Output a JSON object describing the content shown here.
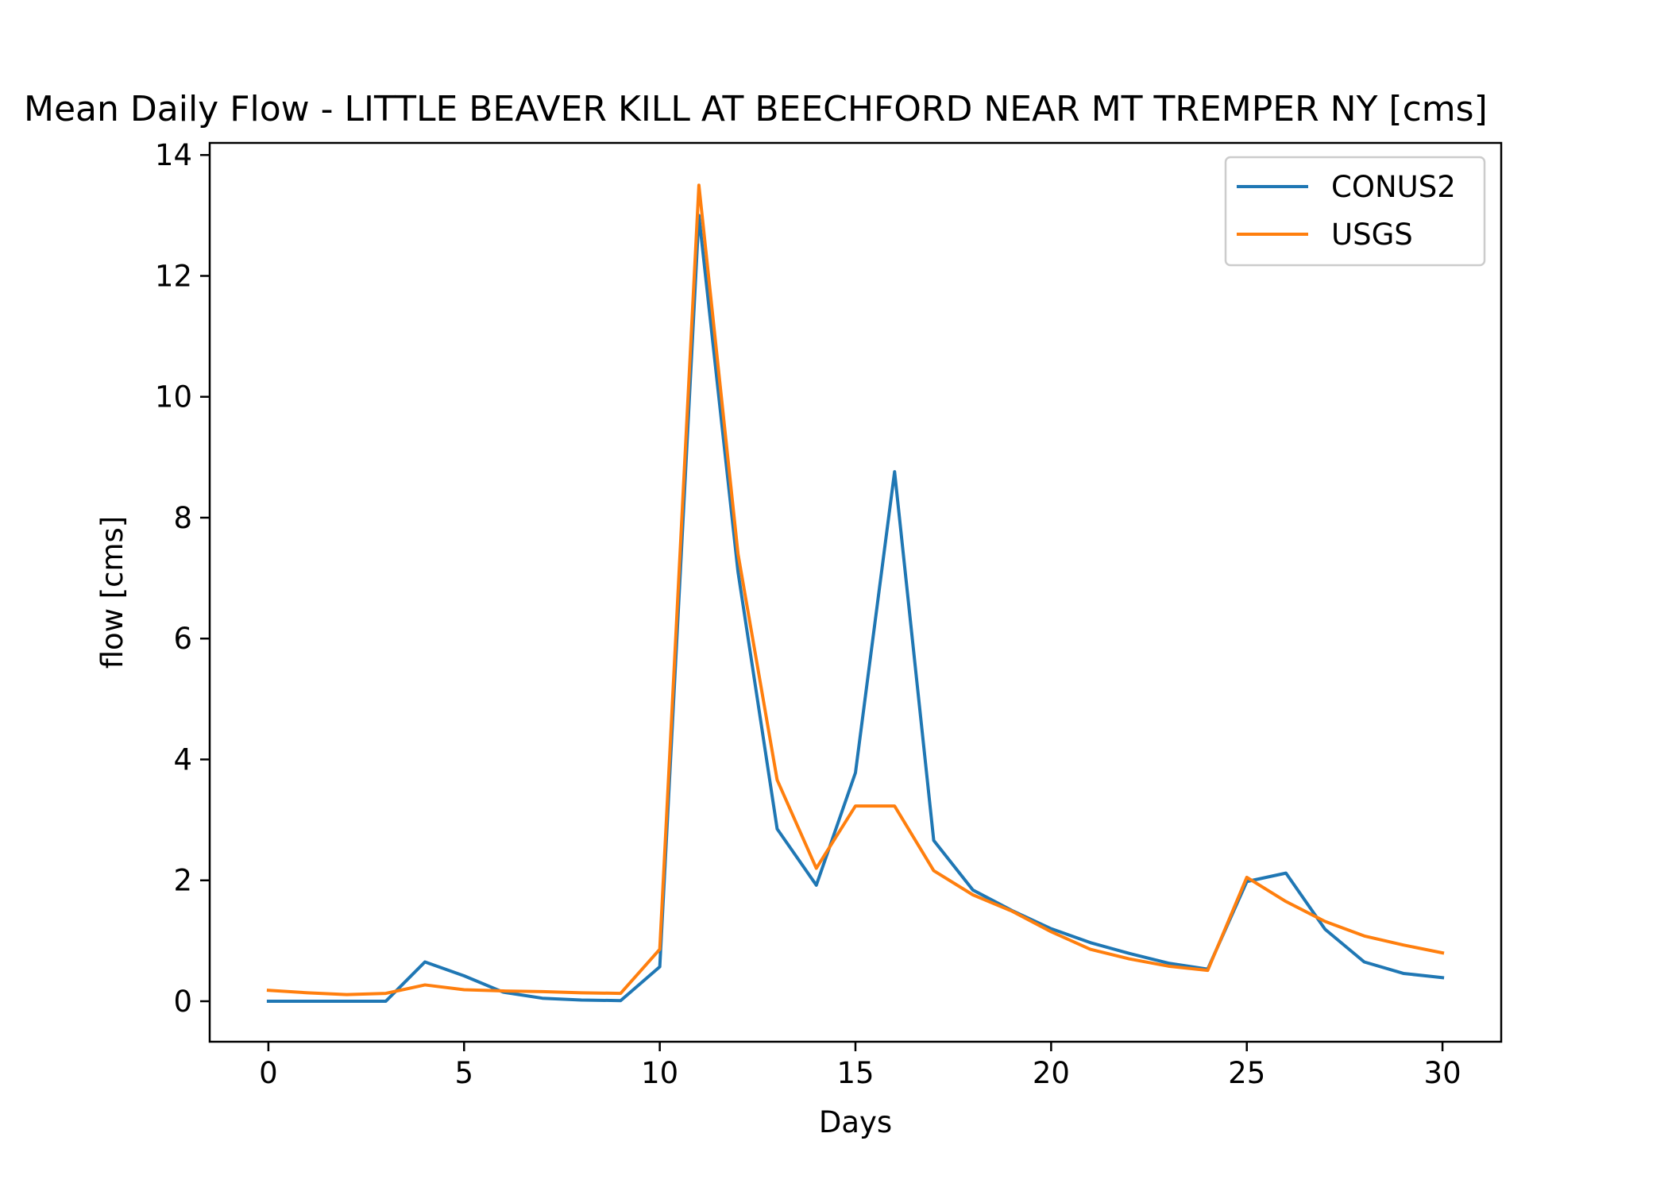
{
  "chart_data": {
    "type": "line",
    "title": "Mean Daily Flow - LITTLE BEAVER KILL AT BEECHFORD NEAR MT TREMPER NY [cms]",
    "xlabel": "Days",
    "ylabel": "flow [cms]",
    "xlim": [
      -1.5,
      31.5
    ],
    "ylim": [
      -0.67,
      14.2
    ],
    "xticks": [
      0,
      5,
      10,
      15,
      20,
      25,
      30
    ],
    "yticks": [
      0,
      2,
      4,
      6,
      8,
      10,
      12,
      14
    ],
    "grid": false,
    "legend_position": "top-right",
    "x": [
      0,
      1,
      2,
      3,
      4,
      5,
      6,
      7,
      8,
      9,
      10,
      11,
      12,
      13,
      14,
      15,
      16,
      17,
      18,
      19,
      20,
      21,
      22,
      23,
      24,
      25,
      26,
      27,
      28,
      29,
      30
    ],
    "series": [
      {
        "name": "CONUS2",
        "color": "#1f77b4",
        "values": [
          0.0,
          0.0,
          0.0,
          0.0,
          0.65,
          0.42,
          0.15,
          0.05,
          0.02,
          0.01,
          0.57,
          13.0,
          7.1,
          2.85,
          1.92,
          3.78,
          8.76,
          2.66,
          1.84,
          1.5,
          1.2,
          0.97,
          0.79,
          0.63,
          0.53,
          1.98,
          2.12,
          1.19,
          0.65,
          0.46,
          0.39
        ]
      },
      {
        "name": "USGS",
        "color": "#ff7f0e",
        "values": [
          0.18,
          0.14,
          0.11,
          0.13,
          0.27,
          0.19,
          0.17,
          0.16,
          0.14,
          0.13,
          0.86,
          13.5,
          7.4,
          3.66,
          2.2,
          3.23,
          3.23,
          2.16,
          1.76,
          1.49,
          1.15,
          0.86,
          0.7,
          0.58,
          0.51,
          2.05,
          1.65,
          1.32,
          1.08,
          0.93,
          0.8
        ]
      }
    ]
  }
}
